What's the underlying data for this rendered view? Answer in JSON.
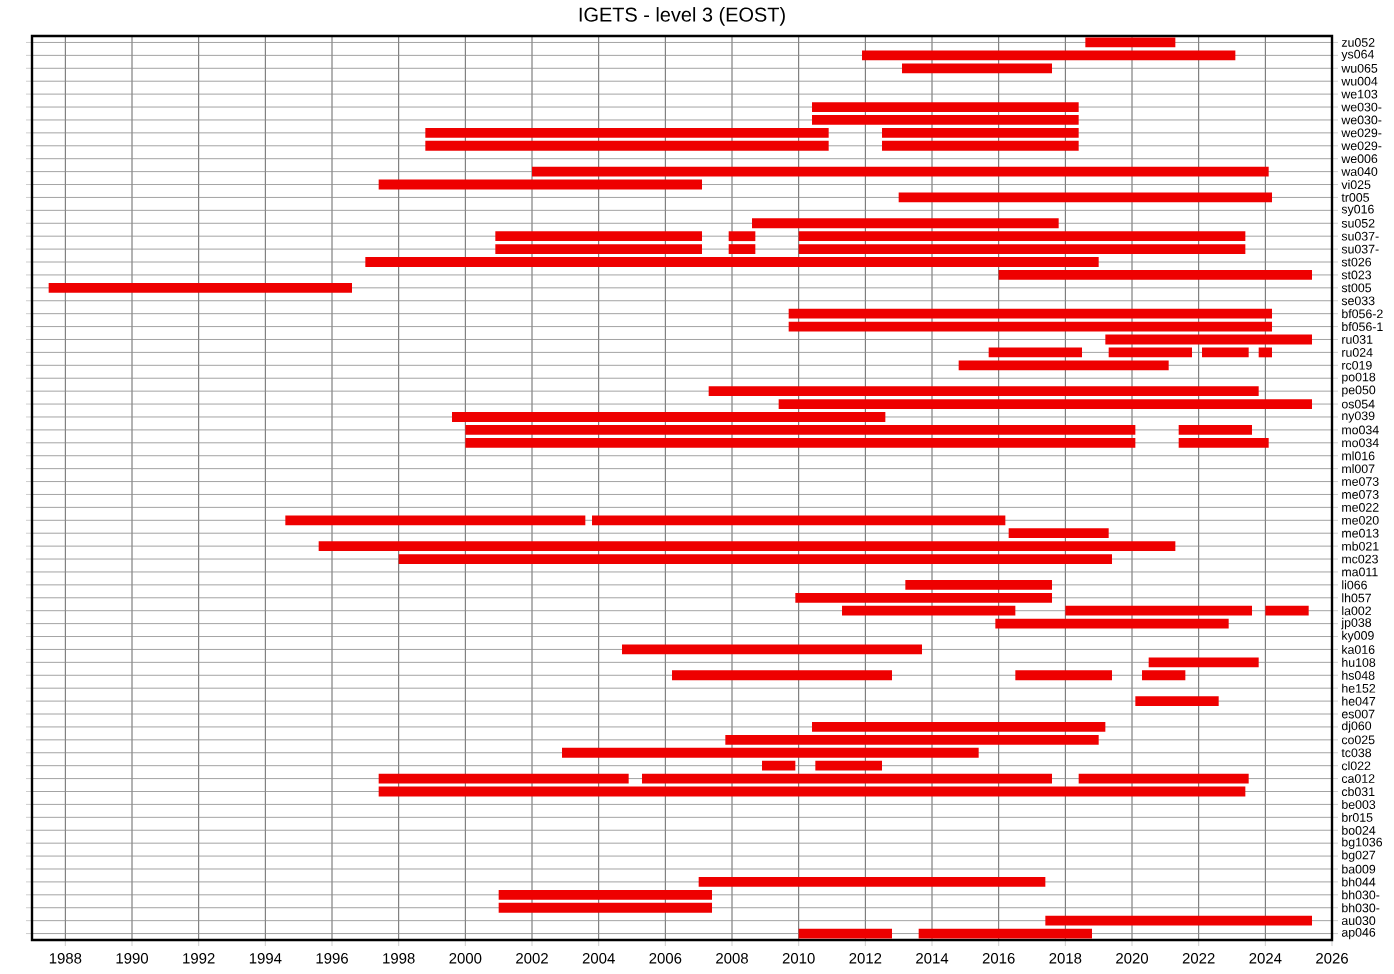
{
  "chart_data": {
    "type": "bar",
    "orientation": "horizontal",
    "title": "IGETS - level 3 (EOST)",
    "categories": [
      "zu052",
      "ys064",
      "wu065",
      "wu004",
      "we103",
      "we030-",
      "we030-",
      "we029-",
      "we029-",
      "we006",
      "wa040",
      "vi025",
      "tr005",
      "sy016",
      "su052",
      "su037-",
      "su037-",
      "st026",
      "st023",
      "st005",
      "se033",
      "bf056-2",
      "bf056-1",
      "ru031",
      "ru024",
      "rc019",
      "po018",
      "pe050",
      "os054",
      "ny039",
      "mo034",
      "mo034",
      "ml016",
      "ml007",
      "me073",
      "me073",
      "me022",
      "me020",
      "me013",
      "mb021",
      "mc023",
      "ma011",
      "li066",
      "lh057",
      "la002",
      "jp038",
      "ky009",
      "ka016",
      "hu108",
      "hs048",
      "he152",
      "he047",
      "es007",
      "dj060",
      "co025",
      "tc038",
      "cl022",
      "ca012",
      "cb031",
      "be003",
      "br015",
      "bo024",
      "bg1036",
      "bg027",
      "ba009",
      "bh044",
      "bh030-",
      "bh030-",
      "au030",
      "ap046"
    ],
    "series": [
      {
        "color": "#ee0000",
        "base": [
          2018.6,
          2011.9,
          2013.1,
          null,
          null,
          2010.4,
          2010.4,
          1998.8,
          1998.8,
          null,
          2002.0,
          1997.4,
          2013.0,
          null,
          2008.6,
          2000.9,
          2000.9,
          1997.0,
          2016.0,
          1987.5,
          null,
          2009.7,
          2009.7,
          2019.2,
          2015.7,
          2014.8,
          null,
          2007.3,
          2009.4,
          1999.6,
          2000.0,
          2000.0,
          null,
          null,
          null,
          null,
          null,
          1994.6,
          2016.3,
          1995.6,
          1998.0,
          null,
          2013.2,
          2009.9,
          2011.3,
          2015.9,
          null,
          2004.7,
          2020.5,
          2006.2,
          null,
          2020.1,
          null,
          2010.4,
          2007.8,
          2002.9,
          2008.9,
          1997.4,
          1997.4,
          null,
          null,
          null,
          null,
          null,
          null,
          2007.0,
          2001.0,
          2001.0,
          2017.4,
          2010.0
        ],
        "values": [
          2.7,
          11.2,
          4.5,
          null,
          null,
          8.0,
          8.0,
          12.1,
          12.1,
          null,
          22.1,
          9.7,
          11.2,
          null,
          9.2,
          6.2,
          6.2,
          22.0,
          9.4,
          9.1,
          null,
          14.5,
          14.5,
          6.2,
          2.8,
          6.3,
          null,
          16.5,
          16.0,
          13.0,
          20.1,
          20.1,
          null,
          null,
          null,
          null,
          null,
          9.0,
          3.0,
          25.7,
          21.4,
          null,
          4.4,
          7.7,
          5.2,
          7.0,
          null,
          9.0,
          3.3,
          6.6,
          null,
          2.5,
          null,
          8.8,
          11.2,
          12.5,
          1.0,
          7.5,
          26.0,
          null,
          null,
          null,
          null,
          null,
          null,
          10.4,
          6.4,
          6.4,
          8.0,
          2.8
        ]
      },
      {
        "color": "#ee0000",
        "base": [
          null,
          null,
          null,
          null,
          null,
          null,
          null,
          2012.5,
          2012.5,
          null,
          null,
          null,
          null,
          null,
          null,
          2007.9,
          2007.9,
          null,
          null,
          null,
          null,
          null,
          null,
          null,
          2019.3,
          null,
          null,
          null,
          null,
          null,
          2021.4,
          2021.4,
          null,
          null,
          null,
          null,
          null,
          2003.8,
          null,
          null,
          null,
          null,
          null,
          null,
          2018.0,
          null,
          null,
          null,
          null,
          2016.5,
          null,
          null,
          null,
          null,
          null,
          null,
          2010.5,
          2005.3,
          null,
          null,
          null,
          null,
          null,
          null,
          null,
          null,
          null,
          null,
          null,
          2013.6
        ],
        "values": [
          null,
          null,
          null,
          null,
          null,
          null,
          null,
          5.9,
          5.9,
          null,
          null,
          null,
          null,
          null,
          null,
          0.8,
          0.8,
          null,
          null,
          null,
          null,
          null,
          null,
          null,
          2.5,
          null,
          null,
          null,
          null,
          null,
          2.2,
          2.7,
          null,
          null,
          null,
          null,
          null,
          12.4,
          null,
          null,
          null,
          null,
          null,
          null,
          5.6,
          null,
          null,
          null,
          null,
          2.9,
          null,
          null,
          null,
          null,
          null,
          null,
          2.0,
          12.3,
          null,
          null,
          null,
          null,
          null,
          null,
          null,
          null,
          null,
          null,
          null,
          5.2
        ]
      },
      {
        "color": "#ee0000",
        "base": [
          null,
          null,
          null,
          null,
          null,
          null,
          null,
          null,
          null,
          null,
          null,
          null,
          null,
          null,
          null,
          2010.0,
          2010.0,
          null,
          null,
          null,
          null,
          null,
          null,
          null,
          2022.1,
          null,
          null,
          null,
          null,
          null,
          null,
          null,
          null,
          null,
          null,
          null,
          null,
          null,
          null,
          null,
          null,
          null,
          null,
          null,
          2024.0,
          null,
          null,
          null,
          null,
          2020.3,
          null,
          null,
          null,
          null,
          null,
          null,
          null,
          2018.4,
          null,
          null,
          null,
          null,
          null,
          null,
          null,
          null,
          null,
          null,
          null,
          null
        ],
        "values": [
          null,
          null,
          null,
          null,
          null,
          null,
          null,
          null,
          null,
          null,
          null,
          null,
          null,
          null,
          null,
          13.4,
          13.4,
          null,
          null,
          null,
          null,
          null,
          null,
          null,
          1.4,
          null,
          null,
          null,
          null,
          null,
          null,
          null,
          null,
          null,
          null,
          null,
          null,
          null,
          null,
          null,
          null,
          null,
          null,
          null,
          1.3,
          null,
          null,
          null,
          null,
          1.3,
          null,
          null,
          null,
          null,
          null,
          null,
          null,
          5.1,
          null,
          null,
          null,
          null,
          null,
          null,
          null,
          null,
          null,
          null,
          null,
          null
        ]
      },
      {
        "color": "#ee0000",
        "base": [
          null,
          null,
          null,
          null,
          null,
          null,
          null,
          null,
          null,
          null,
          null,
          null,
          null,
          null,
          null,
          null,
          null,
          null,
          null,
          null,
          null,
          null,
          null,
          null,
          2023.8,
          null,
          null,
          null,
          null,
          null,
          null,
          null,
          null,
          null,
          null,
          null,
          null,
          null,
          null,
          null,
          null,
          null,
          null,
          null,
          null,
          null,
          null,
          null,
          null,
          null,
          null,
          null,
          null,
          null,
          null,
          null,
          null,
          null,
          null,
          null,
          null,
          null,
          null,
          null,
          null,
          null,
          null,
          null,
          null,
          null
        ],
        "values": [
          null,
          null,
          null,
          null,
          null,
          null,
          null,
          null,
          null,
          null,
          null,
          null,
          null,
          null,
          null,
          null,
          null,
          null,
          null,
          null,
          null,
          null,
          null,
          null,
          0.4,
          null,
          null,
          null,
          null,
          null,
          null,
          null,
          null,
          null,
          null,
          null,
          null,
          null,
          null,
          null,
          null,
          null,
          null,
          null,
          null,
          null,
          null,
          null,
          null,
          null,
          null,
          null,
          null,
          null,
          null,
          null,
          null,
          null,
          null,
          null,
          null,
          null,
          null,
          null,
          null,
          null,
          null,
          null,
          null,
          null
        ]
      }
    ],
    "xlim": [
      1987,
      2026
    ],
    "xticks": [
      1988,
      1990,
      1992,
      1994,
      1996,
      1998,
      2000,
      2002,
      2004,
      2006,
      2008,
      2010,
      2012,
      2014,
      2016,
      2018,
      2020,
      2022,
      2024,
      2026
    ],
    "grid": true
  }
}
